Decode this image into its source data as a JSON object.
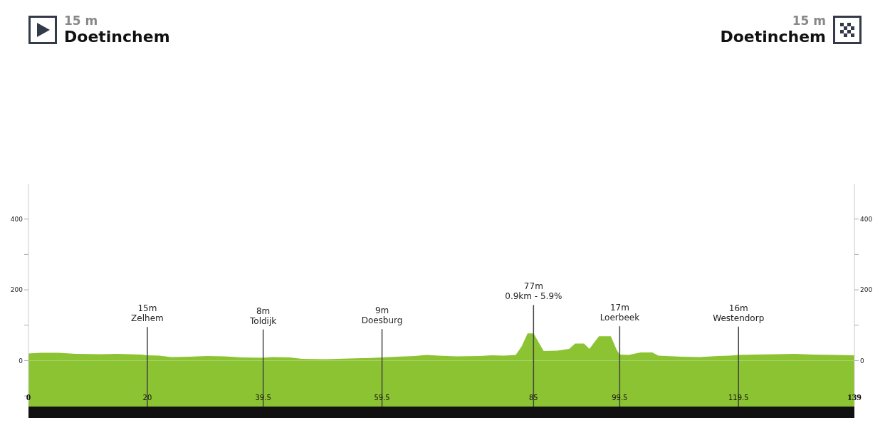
{
  "chart_data": {
    "type": "area",
    "annotations": [
      "15 m",
      "Doetinchem",
      "15 m",
      "Doetinchem"
    ],
    "x": [
      0,
      2,
      5,
      8,
      12,
      15,
      19,
      20,
      22,
      24,
      27,
      30,
      33,
      36,
      39.5,
      41,
      44,
      46,
      50,
      54,
      57,
      59.5,
      62,
      65,
      67,
      69,
      72,
      76,
      78,
      80,
      82,
      83,
      84,
      85,
      86.7,
      89,
      91,
      92,
      93.5,
      94.4,
      96,
      98,
      99,
      99.5,
      101,
      103,
      105,
      106,
      110,
      113,
      116,
      118,
      119.5,
      122,
      126,
      129,
      132,
      136,
      139
    ],
    "series": [
      {
        "color": "#8cc332",
        "values": [
          20,
          22,
          22,
          19,
          18,
          19,
          17,
          15,
          14,
          10,
          11,
          13,
          12,
          9,
          8,
          10,
          9,
          5,
          4,
          6,
          7,
          9,
          11,
          13,
          16,
          14,
          12,
          13,
          15,
          14,
          16,
          40,
          77,
          77,
          27,
          28,
          33,
          48,
          48,
          33,
          69,
          69,
          30,
          17,
          16,
          23,
          23,
          14,
          11,
          10,
          13,
          14,
          16,
          17,
          18,
          19,
          17,
          16,
          15
        ]
      }
    ],
    "xlim": [
      0,
      139
    ],
    "xticks": [
      0,
      20,
      39.5,
      59.5,
      85,
      99.5,
      119.5,
      139
    ],
    "ylim": [
      -130,
      500
    ],
    "yticks": [
      {
        "value": -100,
        "label": null
      },
      0,
      {
        "value": 100,
        "label": null
      },
      200,
      {
        "value": 300,
        "label": null
      },
      400
    ],
    "y2lim": [
      -130,
      500
    ],
    "y2ticks": [
      {
        "value": -100,
        "label": null
      },
      0,
      {
        "value": 100,
        "label": null
      },
      200,
      {
        "value": 300,
        "label": null
      },
      400
    ],
    "bands": [
      {
        "axis": "y",
        "from": -130,
        "to": 0,
        "color": "#8cc332"
      }
    ],
    "ref_lines": [
      {
        "axis": "x",
        "value": 20,
        "label": "15m\nZelhem",
        "color": "#444444"
      },
      {
        "axis": "x",
        "value": 39.5,
        "label": "8m\nToldijk",
        "color": "#444444"
      },
      {
        "axis": "x",
        "value": 59.5,
        "label": "9m\nDoesburg",
        "color": "#444444"
      },
      {
        "axis": "x",
        "value": 85,
        "label": "77m\n0.9km - 5.9%",
        "color": "#444444"
      },
      {
        "axis": "x",
        "value": 99.5,
        "label": "17m\nLoerbeek",
        "color": "#444444"
      },
      {
        "axis": "x",
        "value": 119.5,
        "label": "16m\nWestendorp",
        "color": "#444444"
      }
    ]
  }
}
